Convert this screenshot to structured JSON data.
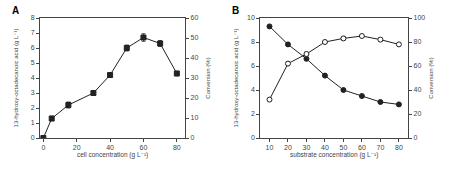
{
  "chart_data": [
    {
      "type": "line",
      "title": "A",
      "x_label": "cell concentration (g L⁻¹)",
      "y_label": "13-hydroxy-octadecanoic acid (g L⁻¹)",
      "y2_label": "Conversion (%)",
      "x": [
        0,
        5,
        15,
        30,
        40,
        50,
        60,
        70,
        80
      ],
      "series": [
        {
          "values": [
            0,
            1.3,
            2.2,
            3.0,
            4.2,
            6.0,
            6.7,
            6.3,
            4.3
          ],
          "yerr": [
            0,
            0.15,
            0.2,
            0.1,
            0.15,
            0.2,
            0.25,
            0.2,
            0.15
          ],
          "color": "#222222",
          "marker": "square"
        }
      ],
      "xlim": [
        -2,
        85
      ],
      "xticks": [
        0,
        20,
        40,
        60,
        80
      ],
      "ylim": [
        0,
        8
      ],
      "yticks": [
        0,
        1,
        2,
        3,
        4,
        5,
        6,
        7,
        8
      ],
      "y2lim": [
        0,
        60
      ],
      "y2ticks": [
        0,
        10,
        20,
        30,
        40,
        50,
        60
      ],
      "grid": false
    },
    {
      "type": "line",
      "title": "B",
      "x_label": "substrate concentration (g L⁻¹)",
      "y_label": "13-hydroxy-octadecanoic acid (g L⁻¹)",
      "y2_label": "Conversion (%)",
      "x": [
        10,
        20,
        30,
        40,
        50,
        60,
        70,
        80
      ],
      "series": [
        {
          "values": [
            9.3,
            7.8,
            6.6,
            5.2,
            4.0,
            3.5,
            3.0,
            2.8
          ],
          "yerr": [
            0.1,
            0.15,
            0.12,
            0.15,
            0.1,
            0.1,
            0.1,
            0.1
          ],
          "color": "#222222",
          "marker": "circle"
        },
        {
          "values": [
            3.2,
            6.2,
            7.0,
            8.0,
            8.3,
            8.5,
            8.2,
            7.8
          ],
          "yerr": [
            0.1,
            0.15,
            0.15,
            0.1,
            0.15,
            0.1,
            0.12,
            0.1
          ],
          "color": "#222222",
          "marker": "circle-open"
        }
      ],
      "xlim": [
        5,
        85
      ],
      "xticks": [
        10,
        20,
        30,
        40,
        50,
        60,
        70,
        80
      ],
      "ylim": [
        0,
        10
      ],
      "yticks": [
        0,
        2,
        4,
        6,
        8,
        10
      ],
      "y2lim": [
        0,
        100
      ],
      "y2ticks": [
        0,
        20,
        40,
        60,
        80,
        100
      ],
      "grid": false
    }
  ]
}
